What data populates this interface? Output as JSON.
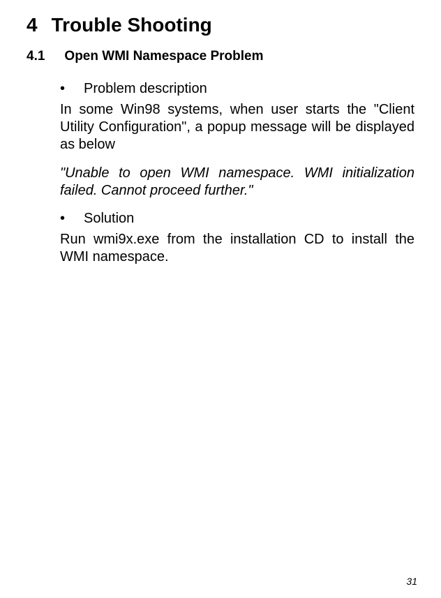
{
  "heading": {
    "number": "4",
    "title": "Trouble Shooting"
  },
  "subheading": {
    "number": "4.1",
    "title": "Open WMI Namespace Problem"
  },
  "bullets": {
    "problem_label": "Problem description",
    "solution_label": "Solution",
    "symbol": "•"
  },
  "body": {
    "problem_text": "In some Win98 systems, when user starts the \"Client Utility Configuration\", a popup message will be displayed as below",
    "error_quote": "\"Unable to open WMI namespace. WMI initialization failed. Cannot proceed further.\"",
    "solution_text": "Run wmi9x.exe from the installation CD to install the WMI namespace."
  },
  "page_number": "31",
  "colors": {
    "background": "#ffffff",
    "text": "#000000"
  },
  "fonts": {
    "base": "Arial",
    "h1_size_pt": 21,
    "h2_size_pt": 14,
    "body_size_pt": 15
  }
}
